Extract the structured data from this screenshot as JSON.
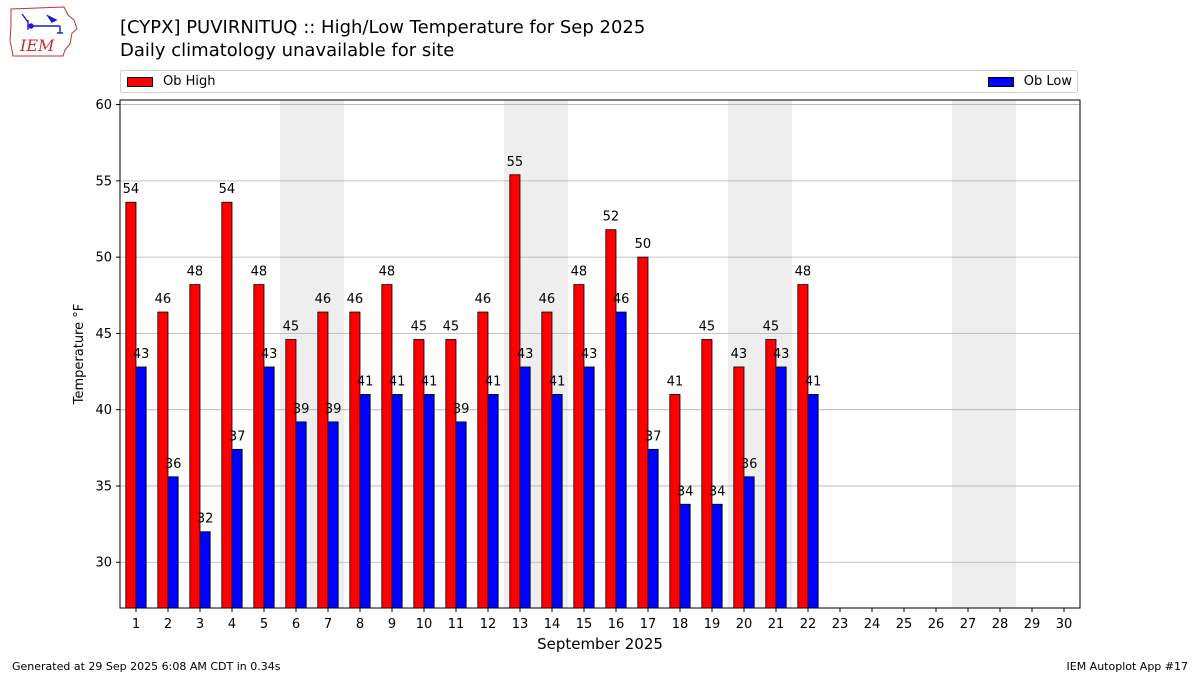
{
  "header": {
    "logo_text": "IEM",
    "title": "[CYPX] PUVIRNITUQ :: High/Low Temperature for Sep 2025",
    "subtitle": "Daily climatology unavailable for site"
  },
  "footer": {
    "left": "Generated at 29 Sep 2025 6:08 AM CDT in 0.34s",
    "right": "IEM Autoplot App #17"
  },
  "colors": {
    "high": "#ff0000",
    "low": "#0000ff",
    "weekend_band": "#eeeeee",
    "grid": "#b0b0b0"
  },
  "chart_data": {
    "type": "bar",
    "xlabel": "September 2025",
    "ylabel": "Temperature °F",
    "ylim": [
      27,
      60.3
    ],
    "yticks": [
      30,
      35,
      40,
      45,
      50,
      55,
      60
    ],
    "grid": "horizontal",
    "legend_placement": "top",
    "categories": [
      "1",
      "2",
      "3",
      "4",
      "5",
      "6",
      "7",
      "8",
      "9",
      "10",
      "11",
      "12",
      "13",
      "14",
      "15",
      "16",
      "17",
      "18",
      "19",
      "20",
      "21",
      "22",
      "23",
      "24",
      "25",
      "26",
      "27",
      "28",
      "29",
      "30"
    ],
    "weekend_days": [
      6,
      7,
      13,
      14,
      20,
      21,
      27,
      28
    ],
    "series": [
      {
        "name": "Ob High",
        "values": [
          53.6,
          46.4,
          48.2,
          53.6,
          48.2,
          44.6,
          46.4,
          46.4,
          48.2,
          44.6,
          44.6,
          46.4,
          55.4,
          46.4,
          48.2,
          51.8,
          50.0,
          41.0,
          44.6,
          42.8,
          44.6,
          48.2,
          null,
          null,
          null,
          null,
          null,
          null,
          null,
          null
        ],
        "labels": [
          "54",
          "46",
          "48",
          "54",
          "48",
          "45",
          "46",
          "46",
          "48",
          "45",
          "45",
          "46",
          "55",
          "46",
          "48",
          "52",
          "50",
          "41",
          "45",
          "43",
          "45",
          "48",
          null,
          null,
          null,
          null,
          null,
          null,
          null,
          null
        ]
      },
      {
        "name": "Ob Low",
        "values": [
          42.8,
          35.6,
          32.0,
          37.4,
          42.8,
          39.2,
          39.2,
          41.0,
          41.0,
          41.0,
          39.2,
          41.0,
          42.8,
          41.0,
          42.8,
          46.4,
          37.4,
          33.8,
          33.8,
          35.6,
          42.8,
          41.0,
          null,
          null,
          null,
          null,
          null,
          null,
          null,
          null
        ],
        "labels": [
          "43",
          "36",
          "32",
          "37",
          "43",
          "39",
          "39",
          "41",
          "41",
          "41",
          "39",
          "41",
          "43",
          "41",
          "43",
          "46",
          "37",
          "34",
          "34",
          "36",
          "43",
          "41",
          null,
          null,
          null,
          null,
          null,
          null,
          null,
          null
        ]
      }
    ]
  }
}
